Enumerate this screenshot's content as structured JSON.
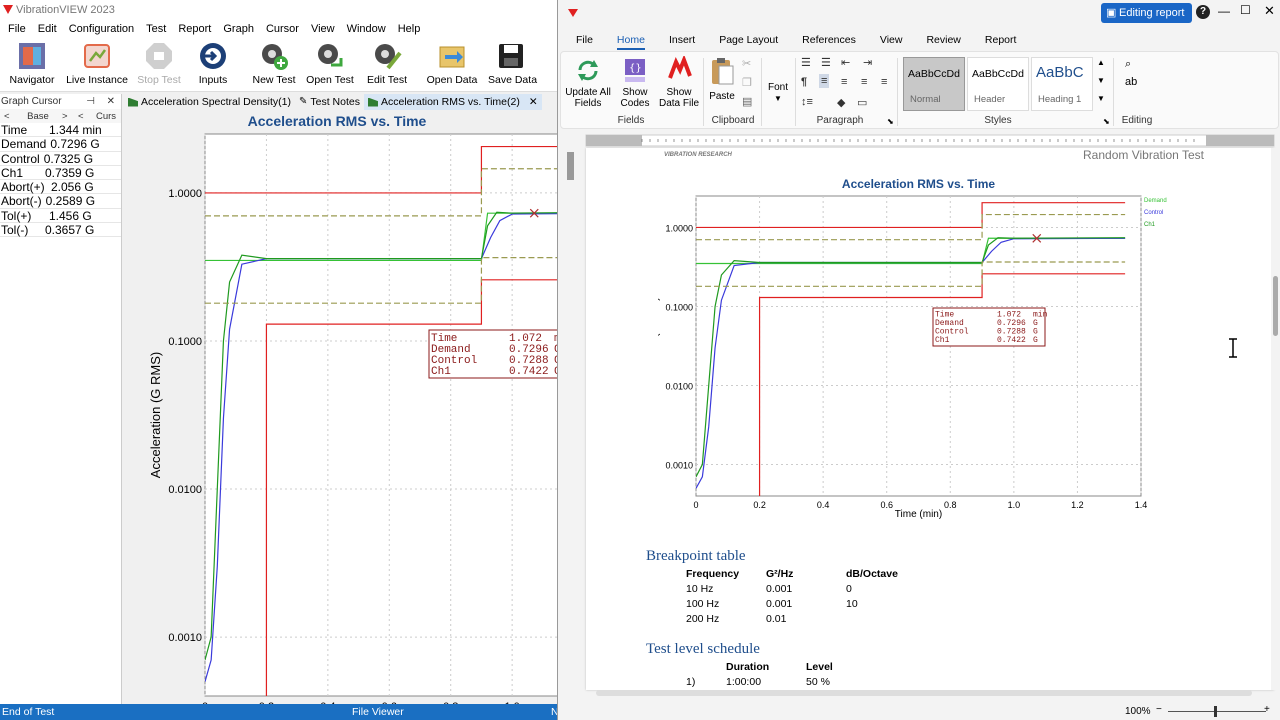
{
  "vv": {
    "title": "VibrationVIEW 2023",
    "menu": [
      "File",
      "Edit",
      "Configuration",
      "Test",
      "Report",
      "Graph",
      "Cursor",
      "View",
      "Window",
      "Help"
    ],
    "toolbar": {
      "navigator": "Navigator",
      "live_instance": "Live Instance",
      "stop_test": "Stop Test",
      "inputs": "Inputs",
      "new_test": "New Test",
      "open_test": "Open Test",
      "edit_test": "Edit Test",
      "open_data": "Open Data",
      "save_data": "Save Data"
    },
    "cursor_panel": {
      "title": "Graph Cursor",
      "sub": {
        "lt": "<",
        "base": "Base",
        "gt": ">",
        "lt2": "<",
        "curs": "Curs"
      },
      "rows": [
        {
          "k": "Time",
          "v": "1.344",
          "u": "min"
        },
        {
          "k": "Demand",
          "v": "0.7296",
          "u": "G"
        },
        {
          "k": "Control",
          "v": "0.7325",
          "u": "G"
        },
        {
          "k": "Ch1",
          "v": "0.7359",
          "u": "G"
        },
        {
          "k": "Abort(+)",
          "v": "2.056",
          "u": "G"
        },
        {
          "k": "Abort(-)",
          "v": "0.2589",
          "u": "G"
        },
        {
          "k": "Tol(+)",
          "v": "1.456",
          "u": "G"
        },
        {
          "k": "Tol(-)",
          "v": "0.3657",
          "u": "G"
        }
      ]
    },
    "tabs": [
      "Acceleration Spectral Density(1)",
      "Test Notes",
      "Acceleration RMS vs. Time(2)"
    ],
    "status": {
      "left": "End of Test",
      "center": "File Viewer",
      "right": "N"
    }
  },
  "chart_data": [
    {
      "type": "line",
      "title": "Acceleration RMS vs. Time",
      "xlabel": "Time (min)",
      "ylabel": "Acceleration (G RMS)",
      "yscale": "log",
      "xlim": [
        0,
        1.4
      ],
      "ylim": [
        0.0004,
        2.5
      ],
      "x_ticks": [
        "0",
        "0.2",
        "0.4",
        "0.6",
        "0.8",
        "1.0"
      ],
      "y_ticks": [
        "1.0000",
        "0.1000",
        "0.0100",
        "0.0010"
      ],
      "series": [
        {
          "name": "Demand",
          "color": "#36c236",
          "x": [
            0,
            0.1,
            0.9,
            0.92,
            1.35
          ],
          "y": [
            0.35,
            0.35,
            0.35,
            0.7296,
            0.7296
          ]
        },
        {
          "name": "Control",
          "color": "#3a3adb",
          "x": [
            0,
            0.02,
            0.04,
            0.06,
            0.08,
            0.12,
            0.2,
            0.9,
            0.93,
            0.96,
            1.0,
            1.35
          ],
          "y": [
            0.0005,
            0.0007,
            0.003,
            0.03,
            0.12,
            0.33,
            0.36,
            0.36,
            0.5,
            0.65,
            0.72,
            0.7288
          ]
        },
        {
          "name": "Ch1",
          "color": "#1f9a1f",
          "x": [
            0,
            0.02,
            0.04,
            0.06,
            0.08,
            0.12,
            0.2,
            0.9,
            0.92,
            0.95,
            1.0,
            1.35
          ],
          "y": [
            0.0007,
            0.001,
            0.01,
            0.1,
            0.25,
            0.38,
            0.36,
            0.36,
            0.6,
            0.74,
            0.73,
            0.7422
          ]
        },
        {
          "name": "Abort(+)",
          "color": "#e02020",
          "x": [
            0,
            0.9,
            0.9,
            1.35
          ],
          "y": [
            1.0,
            1.0,
            2.056,
            2.056
          ]
        },
        {
          "name": "Abort(-)",
          "color": "#e02020",
          "x": [
            0.2,
            0.2,
            0.9,
            0.9,
            1.35
          ],
          "y": [
            0.0004,
            0.13,
            0.13,
            0.2589,
            0.2589
          ]
        },
        {
          "name": "Tol(+)",
          "color": "#9a9a50",
          "x": [
            0,
            0.9,
            0.9,
            1.35
          ],
          "y": [
            0.7,
            0.7,
            1.456,
            1.456
          ]
        },
        {
          "name": "Tol(-)",
          "color": "#9a9a50",
          "x": [
            0,
            0.9,
            0.9,
            1.35
          ],
          "y": [
            0.18,
            0.18,
            0.3657,
            0.3657
          ]
        }
      ],
      "annotation": {
        "rows": [
          {
            "k": "Time",
            "v": "1.072",
            "u": "min"
          },
          {
            "k": "Demand",
            "v": "0.7296",
            "u": "G"
          },
          {
            "k": "Control",
            "v": "0.7288",
            "u": "G"
          },
          {
            "k": "Ch1",
            "v": "0.7422",
            "u": "G"
          }
        ]
      }
    }
  ],
  "report_chart": {
    "x_ticks": [
      "0",
      "0.2",
      "0.4",
      "0.6",
      "0.8",
      "1.0",
      "1.2",
      "1.4"
    ],
    "y_ticks": [
      "1.0000",
      "0.1000",
      "0.0100",
      "0.0010"
    ],
    "legend": [
      "Demand",
      "Control",
      "Ch1"
    ]
  },
  "word": {
    "editing_report": "Editing report",
    "help": "?",
    "tabs": [
      "File",
      "Home",
      "Insert",
      "Page Layout",
      "References",
      "View",
      "Review",
      "Report"
    ],
    "ribbon": {
      "update_all_fields": "Update All Fields",
      "show_codes": "Show Codes",
      "show_data_file": "Show Data File",
      "paste": "Paste",
      "font": "Font",
      "groups": {
        "fields": "Fields",
        "clipboard": "Clipboard",
        "paragraph": "Paragraph",
        "styles": "Styles",
        "editing": "Editing"
      },
      "styles": [
        {
          "sample": "AaBbCcDd",
          "name": "Normal"
        },
        {
          "sample": "AaBbCcDd",
          "name": "Header"
        },
        {
          "sample": "AaBbC",
          "name": "Heading 1"
        }
      ]
    },
    "page": {
      "logo_text": "VIBRATION RESEARCH",
      "header_right": "Random Vibration Test",
      "breakpoint_heading": "Breakpoint table",
      "breakpoint_cols": [
        "Frequency",
        "G²/Hz",
        "dB/Octave"
      ],
      "breakpoint_rows": [
        [
          "10 Hz",
          "0.001",
          "0"
        ],
        [
          "100 Hz",
          "0.001",
          "10"
        ],
        [
          "200 Hz",
          "0.01",
          ""
        ]
      ],
      "schedule_heading": "Test level schedule",
      "schedule_cols": [
        "Duration",
        "Level"
      ],
      "schedule_rows": [
        [
          "1)",
          "1:00:00",
          "50 %"
        ]
      ]
    },
    "status": {
      "zoom": "100%"
    }
  }
}
